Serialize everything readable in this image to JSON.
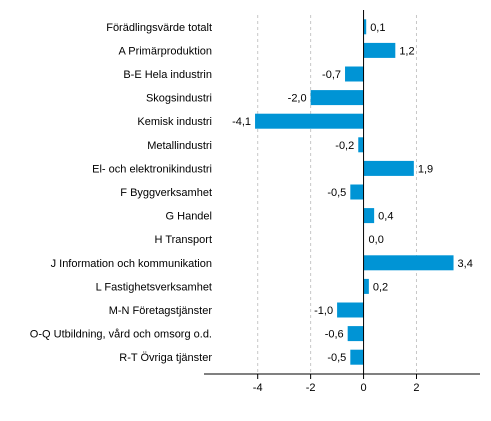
{
  "chart_data": {
    "type": "bar",
    "orientation": "horizontal",
    "categories": [
      "Förädlingsvärde totalt",
      "A Primärproduktion",
      "B-E Hela industrin",
      "Skogsindustri",
      "Kemisk industri",
      "Metallindustri",
      "El- och elektronikindustri",
      "F Byggverksamhet",
      "G Handel",
      "H Transport",
      "J Information och kommunikation",
      "L Fastighetsverksamhet",
      "M-N Företagstjänster",
      "O-Q Utbildning, vård och omsorg o.d.",
      "R-T Övriga tjänster"
    ],
    "values": [
      0.1,
      1.2,
      -0.7,
      -2.0,
      -4.1,
      -0.2,
      1.9,
      -0.5,
      0.4,
      0.0,
      3.4,
      0.2,
      -1.0,
      -0.6,
      -0.5
    ],
    "data_labels": [
      "0,1",
      "1,2",
      "-0,7",
      "-2,0",
      "-4,1",
      "-0,2",
      "1,9",
      "-0,5",
      "0,4",
      "0,0",
      "3,4",
      "0,2",
      "-1,0",
      "-0,6",
      "-0,5"
    ],
    "xlim": [
      -5.5,
      4.4
    ],
    "xticks": [
      -4,
      -2,
      0,
      2
    ],
    "xtick_labels": [
      "-4",
      "-2",
      "0",
      "2"
    ],
    "bar_color": "#0094d5",
    "grid": "vertical dashed",
    "title": "",
    "xlabel": "",
    "ylabel": ""
  }
}
